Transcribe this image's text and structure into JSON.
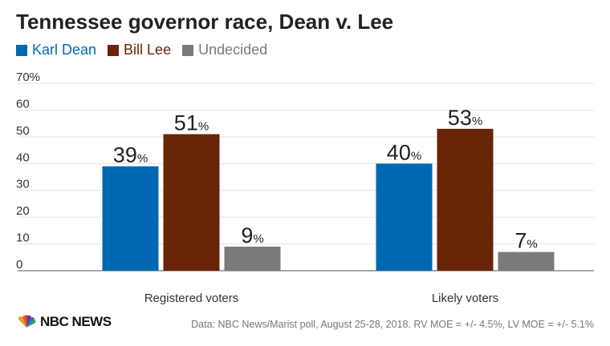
{
  "chart_data": {
    "type": "bar",
    "title": "Tennessee governor race, Dean v. Lee",
    "categories": [
      "Registered voters",
      "Likely voters"
    ],
    "series": [
      {
        "name": "Karl Dean",
        "color": "#0068b0",
        "values": [
          39,
          40
        ]
      },
      {
        "name": "Bill Lee",
        "color": "#682407",
        "values": [
          51,
          53
        ]
      },
      {
        "name": "Undecided",
        "color": "#7a7a7a",
        "values": [
          9,
          7
        ]
      }
    ],
    "ylim": [
      0,
      70
    ],
    "yticks": [
      0,
      10,
      20,
      30,
      40,
      50,
      60,
      70
    ],
    "ytick_labels": [
      "0",
      "10",
      "20",
      "30",
      "40",
      "50",
      "60",
      "70%"
    ],
    "data_label_suffix": "%",
    "grid": true,
    "legend_position": "top-left"
  },
  "branding": {
    "logo_text": "NBC NEWS",
    "source": "Data: NBC News/Marist poll, August 25-28, 2018. RV MOE = +/- 4.5%, LV MOE = +/- 5.1%"
  }
}
